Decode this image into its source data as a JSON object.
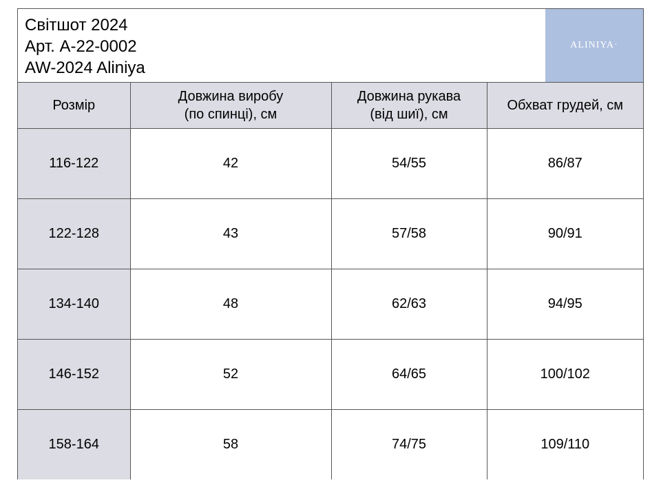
{
  "header": {
    "title": "Світшот 2024",
    "article": "Арт. А-22-0002",
    "collection": "AW-2024 Aliniya",
    "logo_text": "ALINIYA·",
    "logo_bg_color": "#aec0e0"
  },
  "table": {
    "columns": [
      {
        "line1": "Розмір",
        "line2": ""
      },
      {
        "line1": "Довжина виробу",
        "line2": "(по спинці), см"
      },
      {
        "line1": "Довжина рукава",
        "line2": "(від шиї), см"
      },
      {
        "line1": "Обхват грудей, см",
        "line2": ""
      }
    ],
    "rows": [
      [
        "116-122",
        "42",
        "54/55",
        "86/87"
      ],
      [
        "122-128",
        "43",
        "57/58",
        "90/91"
      ],
      [
        "134-140",
        "48",
        "62/63",
        "94/95"
      ],
      [
        "146-152",
        "52",
        "64/65",
        "100/102"
      ],
      [
        "158-164",
        "58",
        "74/75",
        "109/110"
      ]
    ],
    "header_bg_color": "#dcdce4"
  }
}
